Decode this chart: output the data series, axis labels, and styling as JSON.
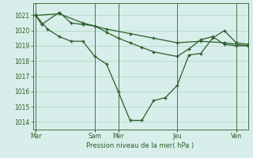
{
  "background_color": "#d8eeea",
  "grid_color": "#b0d8cc",
  "line_color": "#2a5e2a",
  "xlabel": "Pression niveau de la mer( hPa )",
  "ylim": [
    1013.5,
    1021.8
  ],
  "yticks": [
    1014,
    1015,
    1016,
    1017,
    1018,
    1019,
    1020,
    1021
  ],
  "day_labels": [
    "Mar",
    "Sam",
    "Mer",
    "Jeu",
    "Ven"
  ],
  "day_positions": [
    0,
    0.417,
    0.583,
    1.0,
    1.417
  ],
  "xmax": 1.5,
  "line1_x": [
    0.0,
    0.042,
    0.167,
    0.25,
    0.333,
    0.417,
    0.5,
    0.583,
    0.667,
    0.75,
    0.833,
    1.0,
    1.083,
    1.167,
    1.25,
    1.333,
    1.417,
    1.5
  ],
  "line1_y": [
    1021.0,
    1020.4,
    1021.2,
    1020.5,
    1020.4,
    1020.3,
    1019.9,
    1019.5,
    1019.2,
    1018.9,
    1018.6,
    1018.3,
    1018.8,
    1019.4,
    1019.6,
    1019.1,
    1019.0,
    1019.0
  ],
  "line2_x": [
    0.0,
    0.083,
    0.167,
    0.25,
    0.333,
    0.417,
    0.5,
    0.583,
    0.667,
    0.75,
    0.833,
    0.917,
    1.0,
    1.083,
    1.167,
    1.25,
    1.333,
    1.417,
    1.5
  ],
  "line2_y": [
    1021.0,
    1020.1,
    1019.6,
    1019.3,
    1019.3,
    1018.3,
    1017.8,
    1016.0,
    1014.1,
    1014.1,
    1015.4,
    1015.6,
    1016.4,
    1018.4,
    1018.5,
    1019.5,
    1020.0,
    1019.2,
    1019.1
  ],
  "line3_x": [
    0.0,
    0.167,
    0.333,
    0.5,
    0.667,
    0.833,
    1.0,
    1.167,
    1.333,
    1.5
  ],
  "line3_y": [
    1021.0,
    1021.1,
    1020.5,
    1020.1,
    1019.8,
    1019.5,
    1019.2,
    1019.3,
    1019.2,
    1019.0
  ]
}
